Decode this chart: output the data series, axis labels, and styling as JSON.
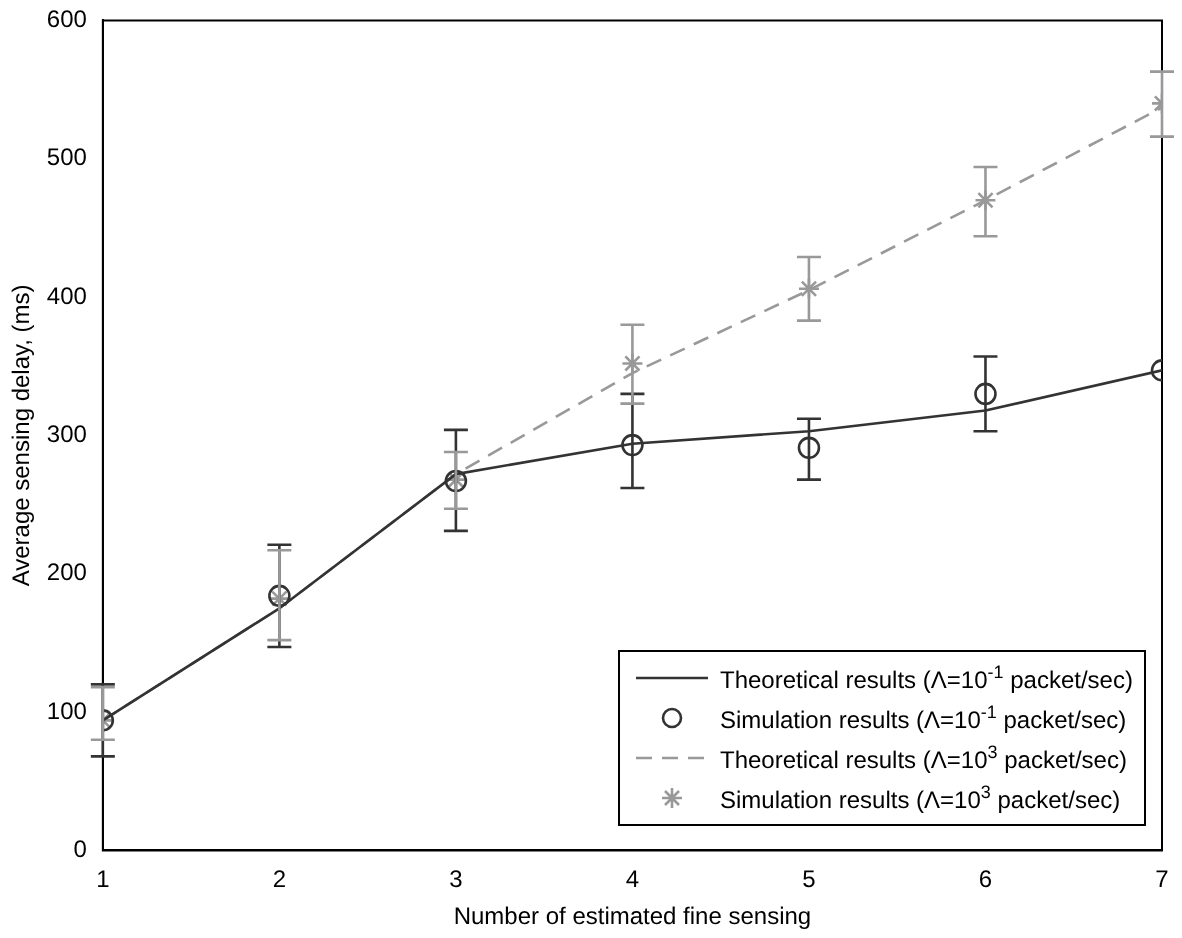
{
  "chart_data": {
    "type": "line",
    "xlabel": "Number of estimated fine sensing",
    "ylabel": "Average sensing delay, (ms)",
    "x": [
      1,
      2,
      3,
      4,
      5,
      6,
      7
    ],
    "xlim": [
      1,
      7
    ],
    "xticks": [
      1,
      2,
      3,
      4,
      5,
      6,
      7
    ],
    "ylim": [
      0,
      600
    ],
    "yticks": [
      0,
      100,
      200,
      300,
      400,
      500,
      600
    ],
    "grid": false,
    "legend": "bottom right",
    "series": [
      {
        "name": "Theoretical results (Λ=10$^{-1}$ packet/sec)",
        "color": "#333333",
        "marker": "none",
        "line_style": "solid",
        "values": [
          94,
          175,
          272,
          294,
          303,
          318,
          347
        ]
      },
      {
        "name": "Simulation results (Λ=10$^{-1}$ packet/sec)",
        "type": "scatter",
        "color": "#333333",
        "marker": "circle",
        "values": [
          94,
          184,
          267,
          293,
          291,
          330,
          347
        ],
        "errors": [
          [
            68,
            120
          ],
          [
            147,
            221
          ],
          [
            231,
            304
          ],
          [
            262,
            330
          ],
          [
            268,
            312
          ],
          [
            303,
            357
          ],
          null
        ]
      },
      {
        "name": "Theoretical results (Λ=10$^{3}$ packet/sec)",
        "color": "#999999",
        "marker": "none",
        "line_style": "dashed",
        "values": [
          94,
          175,
          272,
          345,
          405,
          470,
          537
        ]
      },
      {
        "name": "Simulation results (Λ=10$^{3}$ packet/sec)",
        "type": "scatter",
        "color": "#999999",
        "marker": "cross",
        "values": [
          94,
          182,
          268,
          352,
          406,
          470,
          540
        ],
        "errors": [
          [
            80,
            118
          ],
          [
            152,
            217
          ],
          [
            247,
            288
          ],
          [
            323,
            380
          ],
          [
            383,
            429
          ],
          [
            444,
            494
          ],
          [
            516,
            563
          ]
        ]
      }
    ]
  }
}
